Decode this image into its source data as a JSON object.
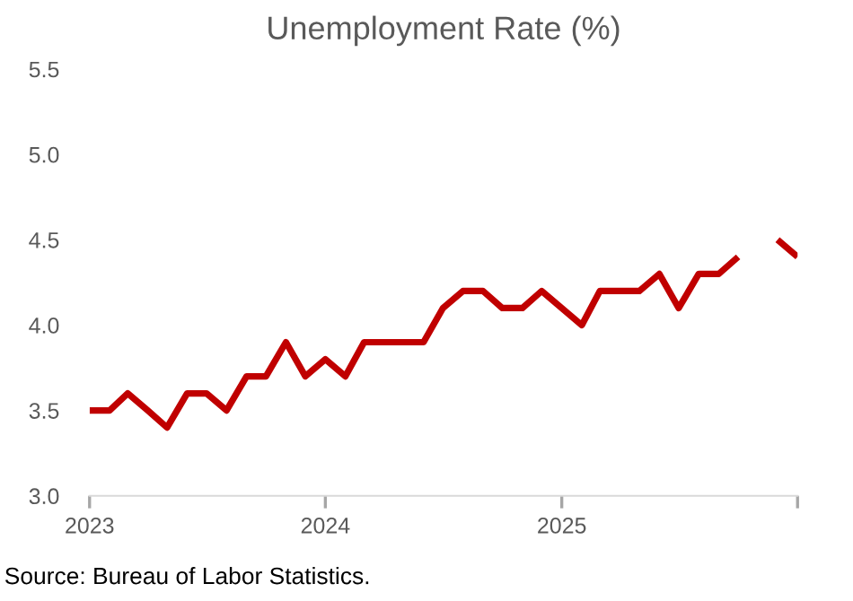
{
  "chart_data": {
    "type": "line",
    "title": "Unemployment Rate (%)",
    "x": [
      "2023-01",
      "2023-02",
      "2023-03",
      "2023-04",
      "2023-05",
      "2023-06",
      "2023-07",
      "2023-08",
      "2023-09",
      "2023-10",
      "2023-11",
      "2023-12",
      "2024-01",
      "2024-02",
      "2024-03",
      "2024-04",
      "2024-05",
      "2024-06",
      "2024-07",
      "2024-08",
      "2024-09",
      "2024-10",
      "2024-11",
      "2024-12",
      "2025-01",
      "2025-02",
      "2025-03",
      "2025-04",
      "2025-05",
      "2025-06",
      "2025-07",
      "2025-08",
      "2025-09",
      "2025-10",
      "2025-11",
      "2025-12",
      "2026-01"
    ],
    "series": [
      {
        "color": "#c00000",
        "values": [
          3.5,
          3.5,
          3.6,
          3.5,
          3.4,
          3.6,
          3.6,
          3.5,
          3.7,
          3.7,
          3.9,
          3.7,
          3.8,
          3.7,
          3.9,
          3.9,
          3.9,
          3.9,
          4.1,
          4.2,
          4.2,
          4.1,
          4.1,
          4.2,
          4.1,
          4.0,
          4.2,
          4.2,
          4.2,
          4.3,
          4.1,
          4.3,
          4.3,
          4.4,
          null,
          4.5,
          4.4
        ]
      }
    ],
    "xlim": [
      "2023-01",
      "2026-01"
    ],
    "xticks": [
      {
        "value": "2023-01",
        "label": "2023"
      },
      {
        "value": "2024-01",
        "label": "2024"
      },
      {
        "value": "2025-01",
        "label": "2025"
      },
      {
        "value": "2026-01",
        "label": null
      }
    ],
    "ylim": [
      3.0,
      5.5
    ],
    "yticks": [
      {
        "value": 3.0,
        "label": "3.0"
      },
      3.5,
      {
        "value": 4.0,
        "label": "4.0"
      },
      4.5,
      {
        "value": 5.0,
        "label": "5.0"
      },
      5.5
    ],
    "grid": false,
    "legend": false,
    "marker": "none",
    "line_style": "solid",
    "annotations": [
      "Source: Bureau of Labor Statistics."
    ]
  }
}
